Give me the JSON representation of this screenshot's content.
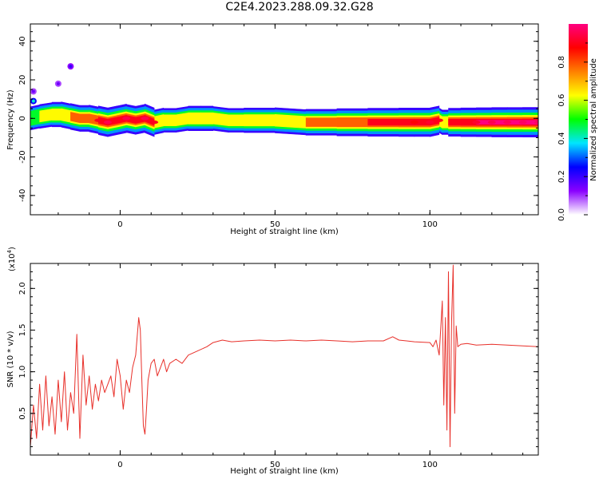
{
  "title": "C2E4.2023.288.09.32.G28",
  "chart_data": [
    {
      "type": "heatmap",
      "xlabel": "Height of straight line (km)",
      "ylabel": "Frequency (Hz)",
      "xlim": [
        -29,
        135
      ],
      "ylim": [
        -50,
        49
      ],
      "xticks": [
        "0",
        "50",
        "100"
      ],
      "yticks": [
        "-40",
        "-20",
        "0",
        "20",
        "40"
      ],
      "colorbar": {
        "label": "Normalized spectral amplitude",
        "range": [
          0.0,
          1.0
        ],
        "ticks": [
          "0.0",
          "0.2",
          "0.4",
          "0.6",
          "0.8"
        ],
        "colors": [
          "#ffffff",
          "#8a00ff",
          "#0000ff",
          "#00e5ff",
          "#00ff00",
          "#ffff00",
          "#ff8000",
          "#ff0000",
          "#ff0080"
        ]
      },
      "ridge": {
        "x": [
          -29,
          -26,
          -22,
          -19,
          -16,
          -13,
          -10,
          -7,
          -4,
          -1,
          2,
          5,
          8,
          11,
          14,
          18,
          22,
          26,
          30,
          35,
          40,
          50,
          60,
          70,
          80,
          90,
          95,
          100,
          103,
          104,
          106,
          110,
          115,
          120,
          125,
          130,
          135
        ],
        "freq": [
          0,
          1,
          2,
          2,
          1,
          0,
          0,
          -1,
          -2,
          -1,
          0,
          -1,
          0,
          -2,
          -1,
          -1,
          0,
          0,
          0,
          -1,
          -1,
          -1,
          -2,
          -2,
          -2,
          -2,
          -2,
          -2,
          -1,
          -2,
          -2,
          -2,
          -2,
          -2,
          -2,
          -2,
          -2
        ],
        "amplitude": [
          0.5,
          0.55,
          0.6,
          0.65,
          0.8,
          0.7,
          0.75,
          0.9,
          0.95,
          0.9,
          0.95,
          0.85,
          0.95,
          0.9,
          0.6,
          0.55,
          0.6,
          0.65,
          0.6,
          0.55,
          0.6,
          0.65,
          0.7,
          0.8,
          0.85,
          0.9,
          0.88,
          0.92,
          0.9,
          0.6,
          0.85,
          0.9,
          0.92,
          0.95,
          0.96,
          0.97,
          0.97
        ]
      },
      "blobs": [
        {
          "x": -16,
          "freq": 27,
          "amplitude": 0.2
        },
        {
          "x": -20,
          "freq": 18,
          "amplitude": 0.15
        },
        {
          "x": -28,
          "freq": 9,
          "amplitude": 0.4
        },
        {
          "x": -28,
          "freq": 14,
          "amplitude": 0.15
        }
      ]
    },
    {
      "type": "line",
      "xlabel": "Height of straight line (km)",
      "ylabel": "SNR (10 * v/v)",
      "yscale_label": "(x10",
      "yscale_exp": "4",
      "xlim": [
        -29,
        135
      ],
      "ylim": [
        0.0,
        2.3
      ],
      "xticks": [
        "0",
        "50",
        "100"
      ],
      "yticks": [
        "0.5",
        "1.0",
        "1.5",
        "2.0"
      ],
      "series": [
        {
          "color": "#e8302a",
          "x": [
            -29,
            -28,
            -27,
            -26,
            -25,
            -24,
            -23,
            -22,
            -21,
            -20,
            -19,
            -18,
            -17,
            -16,
            -15,
            -14,
            -13,
            -12,
            -11,
            -10,
            -9,
            -8,
            -7,
            -6,
            -5,
            -4,
            -3,
            -2,
            -1,
            0,
            1,
            2,
            3,
            4,
            5,
            6,
            6.5,
            7,
            7.5,
            8,
            8.5,
            9,
            10,
            11,
            12,
            13,
            14,
            15,
            16,
            18,
            20,
            22,
            25,
            28,
            30,
            33,
            36,
            40,
            45,
            50,
            55,
            60,
            65,
            70,
            75,
            80,
            85,
            88,
            90,
            95,
            100,
            101,
            102,
            103,
            104,
            104.5,
            105,
            105.5,
            106,
            106.5,
            107,
            107.5,
            108,
            108.5,
            109,
            110,
            112,
            115,
            120,
            125,
            130,
            135
          ],
          "values": [
            0.1,
            0.6,
            0.2,
            0.85,
            0.3,
            0.95,
            0.35,
            0.7,
            0.25,
            0.9,
            0.4,
            1.0,
            0.3,
            0.75,
            0.5,
            1.45,
            0.2,
            1.2,
            0.6,
            0.95,
            0.55,
            0.85,
            0.65,
            0.9,
            0.75,
            0.85,
            0.95,
            0.7,
            1.15,
            0.95,
            0.55,
            0.9,
            0.75,
            1.05,
            1.2,
            1.65,
            1.5,
            0.9,
            0.35,
            0.25,
            0.55,
            0.9,
            1.1,
            1.15,
            0.95,
            1.05,
            1.15,
            1.0,
            1.1,
            1.15,
            1.1,
            1.2,
            1.25,
            1.3,
            1.35,
            1.38,
            1.36,
            1.37,
            1.38,
            1.37,
            1.38,
            1.37,
            1.38,
            1.37,
            1.36,
            1.37,
            1.37,
            1.42,
            1.38,
            1.36,
            1.35,
            1.3,
            1.38,
            1.2,
            1.85,
            0.6,
            1.65,
            0.3,
            2.2,
            0.1,
            1.6,
            2.28,
            0.5,
            1.55,
            1.3,
            1.33,
            1.34,
            1.32,
            1.33,
            1.32,
            1.31,
            1.3
          ]
        }
      ]
    }
  ]
}
